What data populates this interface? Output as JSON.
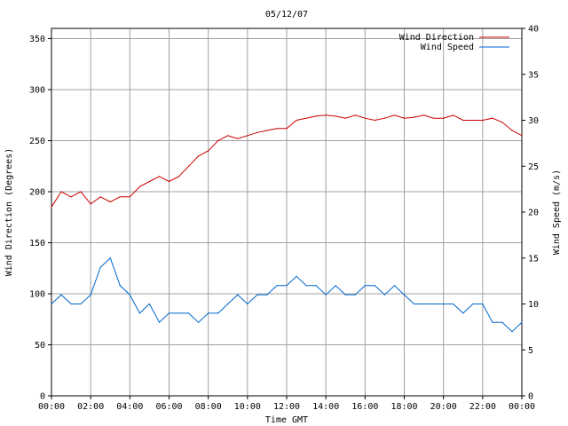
{
  "chart_data": {
    "type": "line",
    "title": "05/12/07",
    "xlabel": "Time GMT",
    "ylabel_left": "Wind Direction (Degrees)",
    "ylabel_right": "Wind Speed (m/s)",
    "x_ticks": [
      "00:00",
      "02:00",
      "04:00",
      "06:00",
      "08:00",
      "10:00",
      "12:00",
      "14:00",
      "16:00",
      "18:00",
      "20:00",
      "22:00",
      "00:00"
    ],
    "x_range_hours": [
      0,
      24
    ],
    "ylim_left": [
      0,
      360
    ],
    "yticks_left": [
      0,
      50,
      100,
      150,
      200,
      250,
      300,
      350
    ],
    "ylim_right": [
      0,
      40
    ],
    "yticks_right": [
      0,
      5,
      10,
      15,
      20,
      25,
      30,
      35,
      40
    ],
    "grid": true,
    "legend_position": "top-right",
    "colors": {
      "direction": "#cc0000",
      "speed": "#0066cc"
    },
    "series": [
      {
        "name": "Wind Direction",
        "axis": "left",
        "hours": [
          0,
          0.5,
          1,
          1.5,
          2,
          2.5,
          3,
          3.5,
          4,
          4.5,
          5,
          5.5,
          6,
          6.5,
          7,
          7.5,
          8,
          8.5,
          9,
          9.5,
          10,
          10.5,
          11,
          11.5,
          12,
          12.5,
          13,
          13.5,
          14,
          14.5,
          15,
          15.5,
          16,
          16.5,
          17,
          17.5,
          18,
          18.5,
          19,
          19.5,
          20,
          20.5,
          21,
          21.5,
          22,
          22.5,
          23,
          23.5,
          24
        ],
        "values": [
          185,
          200,
          195,
          200,
          188,
          195,
          190,
          195,
          195,
          205,
          210,
          215,
          210,
          215,
          225,
          235,
          240,
          250,
          255,
          252,
          255,
          258,
          260,
          262,
          262,
          270,
          272,
          274,
          275,
          274,
          272,
          275,
          272,
          270,
          272,
          275,
          272,
          273,
          275,
          272,
          272,
          275,
          270,
          270,
          270,
          272,
          268,
          260,
          255
        ]
      },
      {
        "name": "Wind Speed",
        "axis": "right",
        "hours": [
          0,
          0.5,
          1,
          1.5,
          2,
          2.5,
          3,
          3.5,
          4,
          4.5,
          5,
          5.5,
          6,
          6.5,
          7,
          7.5,
          8,
          8.5,
          9,
          9.5,
          10,
          10.5,
          11,
          11.5,
          12,
          12.5,
          13,
          13.5,
          14,
          14.5,
          15,
          15.5,
          16,
          16.5,
          17,
          17.5,
          18,
          18.5,
          19,
          19.5,
          20,
          20.5,
          21,
          21.5,
          22,
          22.5,
          23,
          23.5,
          24
        ],
        "values": [
          10,
          11,
          10,
          10,
          11,
          14,
          15,
          12,
          11,
          9,
          10,
          8,
          9,
          9,
          9,
          8,
          9,
          9,
          10,
          11,
          10,
          11,
          11,
          12,
          12,
          13,
          12,
          12,
          11,
          12,
          11,
          11,
          12,
          12,
          11,
          12,
          11,
          10,
          10,
          10,
          10,
          10,
          9,
          10,
          10,
          8,
          8,
          7,
          8
        ]
      }
    ]
  }
}
